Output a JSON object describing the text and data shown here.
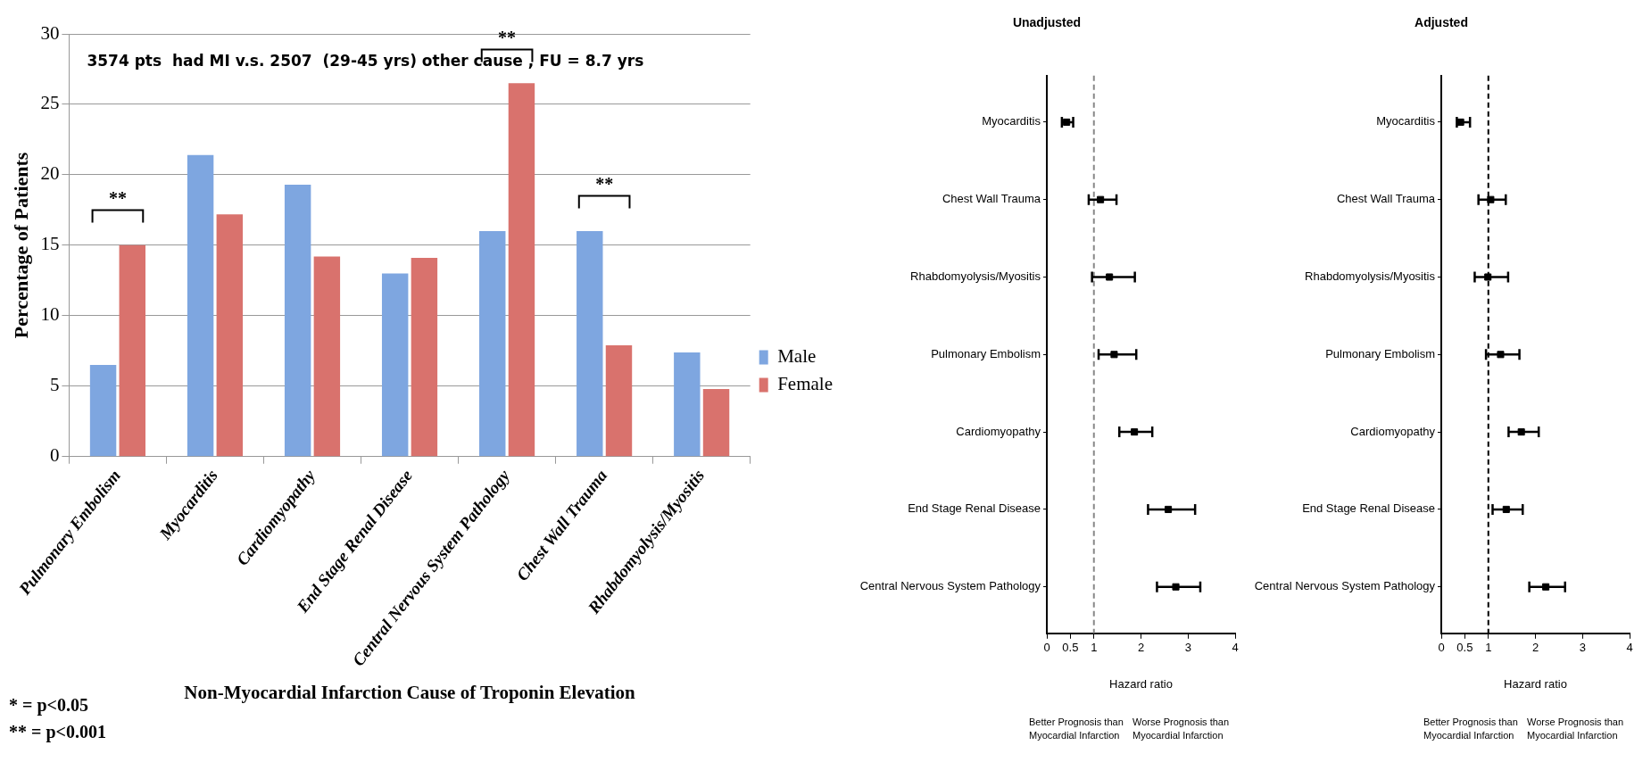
{
  "chart_data": [
    {
      "type": "bar",
      "ylabel": "Percentage of Patients",
      "xlabel": "Non-Myocardial Infarction Cause of Troponin Elevation",
      "categories": [
        "Pulmonary Embolism",
        "Myocarditis",
        "Cardiomyopathy",
        "End Stage Renal Disease",
        "Central Nervous System Pathology",
        "Chest Wall Trauma",
        "Rhabdomyolysis/Myositis"
      ],
      "series": [
        {
          "name": "Male",
          "color": "#7ea6e0",
          "values": [
            6.5,
            21.4,
            19.3,
            13,
            16,
            16,
            7.4
          ]
        },
        {
          "name": "Female",
          "color": "#d9726d",
          "values": [
            15,
            17.2,
            14.2,
            14.1,
            26.5,
            7.9,
            4.8
          ]
        }
      ],
      "ylim": [
        0,
        30
      ],
      "yticks": [
        0,
        5,
        10,
        15,
        20,
        25,
        30
      ],
      "grid": "y",
      "legend": "right",
      "annotations": [
        "3574 pts  had MI v.s. 2507  (29-45 yrs) other cause , FU = 8.7 yrs",
        "* = p<0.05",
        "** = p<0.001",
        "**",
        "**",
        "**"
      ]
    },
    {
      "type": "scatter",
      "orientation": "horizontal",
      "title": "Unadjusted",
      "xlabel": "Hazard ratio",
      "color": "#000000",
      "marker": "square",
      "categories": [
        "Myocarditis",
        "Chest Wall Trauma",
        "Rhabdomyolysis/Myositis",
        "Pulmonary Embolism",
        "Cardiomyopathy",
        "End Stage Renal Disease",
        "Central Nervous System Pathology"
      ],
      "values": [
        0.42,
        1.14,
        1.33,
        1.43,
        1.86,
        2.58,
        2.74
      ],
      "errors": [
        [
          0.32,
          0.56
        ],
        [
          0.89,
          1.48
        ],
        [
          0.96,
          1.87
        ],
        [
          1.1,
          1.9
        ],
        [
          1.54,
          2.24
        ],
        [
          2.15,
          3.15
        ],
        [
          2.34,
          3.26
        ]
      ],
      "xlim": [
        0,
        4
      ],
      "xticks": [
        0,
        0.5,
        1,
        2,
        3,
        4
      ],
      "grid": false,
      "legend": false,
      "ref_lines": [
        {
          "axis": "x",
          "value": 1,
          "color": "#888888",
          "line_style": "dashed"
        }
      ],
      "annotations": [
        "Better Prognosis than Myocardial Infarction",
        "Worse Prognosis than Myocardial Infarction"
      ]
    },
    {
      "type": "scatter",
      "orientation": "horizontal",
      "title": "Adjusted",
      "xlabel": "Hazard ratio",
      "color": "#000000",
      "marker": "square",
      "categories": [
        "Myocarditis",
        "Chest Wall Trauma",
        "Rhabdomyolysis/Myositis",
        "Pulmonary Embolism",
        "Cardiomyopathy",
        "End Stage Renal Disease",
        "Central Nervous System Pathology"
      ],
      "values": [
        0.41,
        1.05,
        0.99,
        1.26,
        1.7,
        1.38,
        2.22
      ],
      "errors": [
        [
          0.33,
          0.61
        ],
        [
          0.79,
          1.37
        ],
        [
          0.71,
          1.42
        ],
        [
          0.95,
          1.66
        ],
        [
          1.43,
          2.07
        ],
        [
          1.09,
          1.73
        ],
        [
          1.87,
          2.63
        ]
      ],
      "xlim": [
        0,
        4
      ],
      "xticks": [
        0,
        0.5,
        1,
        2,
        3,
        4
      ],
      "grid": false,
      "legend": false,
      "ref_lines": [
        {
          "axis": "x",
          "value": 1,
          "color": "#000000",
          "line_style": "dashed"
        }
      ],
      "annotations": [
        "Better Prognosis than Myocardial Infarction",
        "Worse Prognosis than Myocardial Infarction"
      ]
    }
  ]
}
